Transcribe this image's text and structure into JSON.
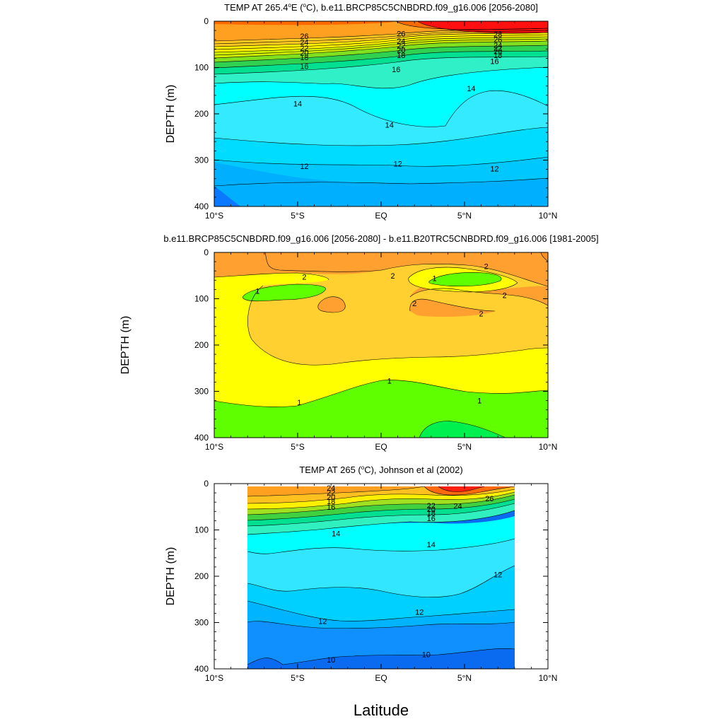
{
  "figure": {
    "xlabel": "Latitude"
  },
  "chart_data": [
    {
      "type": "contour",
      "title": "TEMP AT 265.4°E (°C), b.e11.BRCP85C5CNBDRD.f09_g16.006 [2056-2080]",
      "title_parts": {
        "pre": "TEMP AT 265.4",
        "sup": "o",
        "mid": "E (",
        "sup2": "o",
        "post": "C), b.e11.BRCP85C5CNBDRD.f09_g16.006 [2056-2080]"
      },
      "ylabel": "DEPTH (m)",
      "xlim": [
        -10,
        10
      ],
      "ylim": [
        0,
        400
      ],
      "y_reversed": true,
      "x_ticks": [
        -10,
        -5,
        0,
        5,
        10
      ],
      "x_tick_labels": [
        "10°S",
        "5°S",
        "EQ",
        "5°N",
        "10°N"
      ],
      "y_ticks": [
        0,
        100,
        200,
        300,
        400
      ],
      "y_tick_labels": [
        "0",
        "100",
        "200",
        "300",
        "400"
      ],
      "data_lon_range": [
        -10,
        10
      ],
      "contour_levels": [
        9,
        10,
        11,
        12,
        13,
        14,
        15,
        16,
        17,
        18,
        19,
        20,
        21,
        22,
        23,
        24,
        25,
        26,
        27,
        28
      ],
      "contour_labels": [
        {
          "text": "26",
          "lat": -4.6,
          "depth": 32
        },
        {
          "text": "24",
          "lat": -4.6,
          "depth": 45
        },
        {
          "text": "22",
          "lat": -4.6,
          "depth": 58
        },
        {
          "text": "20",
          "lat": -4.6,
          "depth": 68
        },
        {
          "text": "18",
          "lat": -4.6,
          "depth": 78
        },
        {
          "text": "16",
          "lat": -4.6,
          "depth": 97
        },
        {
          "text": "26",
          "lat": 1.2,
          "depth": 27
        },
        {
          "text": "24",
          "lat": 1.2,
          "depth": 43
        },
        {
          "text": "22",
          "lat": 1.2,
          "depth": 53
        },
        {
          "text": "20",
          "lat": 1.2,
          "depth": 62
        },
        {
          "text": "18",
          "lat": 1.2,
          "depth": 73
        },
        {
          "text": "16",
          "lat": 0.9,
          "depth": 104
        },
        {
          "text": "28",
          "lat": 7.0,
          "depth": 28
        },
        {
          "text": "26",
          "lat": 7.0,
          "depth": 40
        },
        {
          "text": "24",
          "lat": 7.0,
          "depth": 52
        },
        {
          "text": "22",
          "lat": 7.0,
          "depth": 58
        },
        {
          "text": "20",
          "lat": 7.0,
          "depth": 65
        },
        {
          "text": "18",
          "lat": 7.0,
          "depth": 73
        },
        {
          "text": "16",
          "lat": 6.8,
          "depth": 86
        },
        {
          "text": "14",
          "lat": -5.0,
          "depth": 178
        },
        {
          "text": "14",
          "lat": 0.5,
          "depth": 224
        },
        {
          "text": "14",
          "lat": 5.4,
          "depth": 145
        },
        {
          "text": "12",
          "lat": -4.6,
          "depth": 313
        },
        {
          "text": "12",
          "lat": 1.0,
          "depth": 308
        },
        {
          "text": "12",
          "lat": 6.8,
          "depth": 318
        }
      ]
    },
    {
      "type": "contour",
      "title": "b.e11.BRCP85C5CNBDRD.f09_g16.006 [2056-2080] - b.e11.B20TRC5CNBDRD.f09_g16.006 [1981-2005]",
      "ylabel": "DEPTH (m)",
      "xlim": [
        -10,
        10
      ],
      "ylim": [
        0,
        400
      ],
      "y_reversed": true,
      "x_ticks": [
        -10,
        -5,
        0,
        5,
        10
      ],
      "x_tick_labels": [
        "10°S",
        "5°S",
        "EQ",
        "5°N",
        "10°N"
      ],
      "y_ticks": [
        0,
        100,
        200,
        300,
        400
      ],
      "y_tick_labels": [
        "0",
        "100",
        "200",
        "300",
        "400"
      ],
      "data_lon_range": [
        -10,
        10
      ],
      "contour_levels": [
        0.5,
        1,
        1.5,
        2,
        2.5
      ],
      "contour_labels": [
        {
          "text": "2",
          "lat": -4.6,
          "depth": 53
        },
        {
          "text": "2",
          "lat": 0.7,
          "depth": 50
        },
        {
          "text": "2",
          "lat": 6.3,
          "depth": 30
        },
        {
          "text": "1",
          "lat": -7.4,
          "depth": 83
        },
        {
          "text": "1",
          "lat": 3.2,
          "depth": 56
        },
        {
          "text": "2",
          "lat": 2.0,
          "depth": 110
        },
        {
          "text": "2",
          "lat": 7.4,
          "depth": 92
        },
        {
          "text": "2",
          "lat": 6.0,
          "depth": 132
        },
        {
          "text": "1",
          "lat": 0.5,
          "depth": 277
        },
        {
          "text": "1",
          "lat": -4.9,
          "depth": 324
        },
        {
          "text": "1",
          "lat": 5.9,
          "depth": 320
        }
      ]
    },
    {
      "type": "contour",
      "title": "TEMP AT 265 (°C), Johnson et al (2002)",
      "title_parts": {
        "pre": "TEMP AT 265 (",
        "sup": "o",
        "post": "C), Johnson et al (2002)"
      },
      "ylabel": "DEPTH (m)",
      "xlim": [
        -10,
        10
      ],
      "ylim": [
        0,
        400
      ],
      "y_reversed": true,
      "x_ticks": [
        -10,
        -5,
        0,
        5,
        10
      ],
      "x_tick_labels": [
        "10°S",
        "5°S",
        "EQ",
        "5°N",
        "10°N"
      ],
      "y_ticks": [
        0,
        100,
        200,
        300,
        400
      ],
      "y_tick_labels": [
        "0",
        "100",
        "200",
        "300",
        "400"
      ],
      "data_lon_range": [
        -8,
        8
      ],
      "contour_levels": [
        9,
        10,
        11,
        12,
        13,
        14,
        15,
        16,
        17,
        18,
        19,
        20,
        21,
        22,
        23,
        24,
        25,
        26,
        27
      ],
      "contour_labels": [
        {
          "text": "24",
          "lat": -3.0,
          "depth": 9
        },
        {
          "text": "22",
          "lat": -3.0,
          "depth": 19
        },
        {
          "text": "20",
          "lat": -3.0,
          "depth": 29
        },
        {
          "text": "18",
          "lat": -3.0,
          "depth": 38
        },
        {
          "text": "16",
          "lat": -3.0,
          "depth": 50
        },
        {
          "text": "22",
          "lat": 3.0,
          "depth": 47
        },
        {
          "text": "20",
          "lat": 3.0,
          "depth": 55
        },
        {
          "text": "18",
          "lat": 3.0,
          "depth": 63
        },
        {
          "text": "16",
          "lat": 3.0,
          "depth": 75
        },
        {
          "text": "24",
          "lat": 4.6,
          "depth": 48
        },
        {
          "text": "26",
          "lat": 6.5,
          "depth": 32
        },
        {
          "text": "14",
          "lat": -2.7,
          "depth": 108
        },
        {
          "text": "14",
          "lat": 3.0,
          "depth": 131
        },
        {
          "text": "12",
          "lat": 7.0,
          "depth": 196
        },
        {
          "text": "12",
          "lat": 2.3,
          "depth": 277
        },
        {
          "text": "12",
          "lat": -3.5,
          "depth": 297
        },
        {
          "text": "10",
          "lat": -3.0,
          "depth": 380
        },
        {
          "text": "10",
          "lat": 2.7,
          "depth": 369
        }
      ]
    }
  ]
}
